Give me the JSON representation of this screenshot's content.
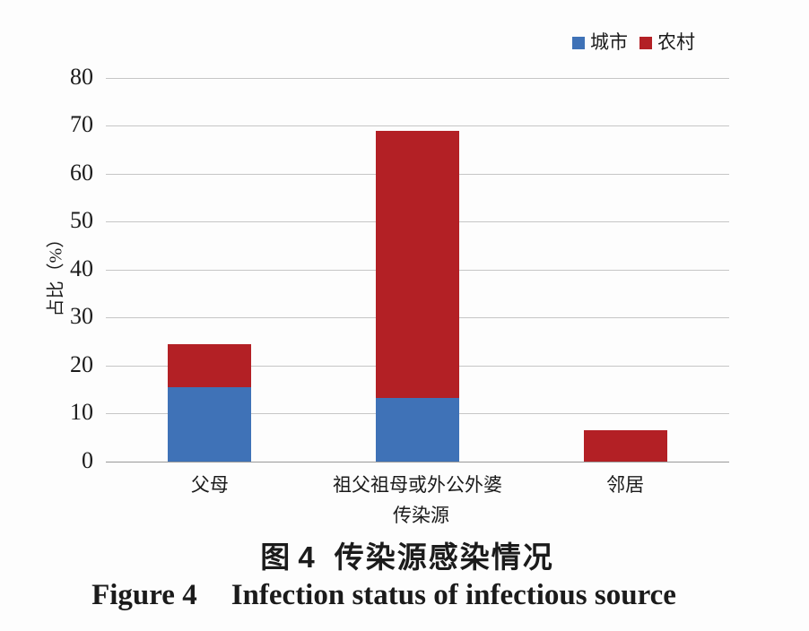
{
  "figure": {
    "caption_zh_prefix": "图 4",
    "caption_zh_text": "传染源感染情况",
    "caption_en_prefix": "Figure 4",
    "caption_en_text": "Infection status of infectious source"
  },
  "chart_data": {
    "type": "bar",
    "stacked": true,
    "categories": [
      "父母",
      "祖父祖母或外公外婆",
      "邻居"
    ],
    "series": [
      {
        "name": "城市",
        "color": "#3f72b7",
        "values": [
          15.5,
          13.3,
          0
        ]
      },
      {
        "name": "农村",
        "color": "#b32025",
        "values": [
          9.0,
          55.7,
          6.6
        ]
      }
    ],
    "xlabel": "传染源",
    "ylabel": "占比（%）",
    "ylim": [
      0,
      80
    ],
    "yticks": [
      0,
      10,
      20,
      30,
      40,
      50,
      60,
      70,
      80
    ],
    "grid": true,
    "legend_position": "top-right"
  }
}
